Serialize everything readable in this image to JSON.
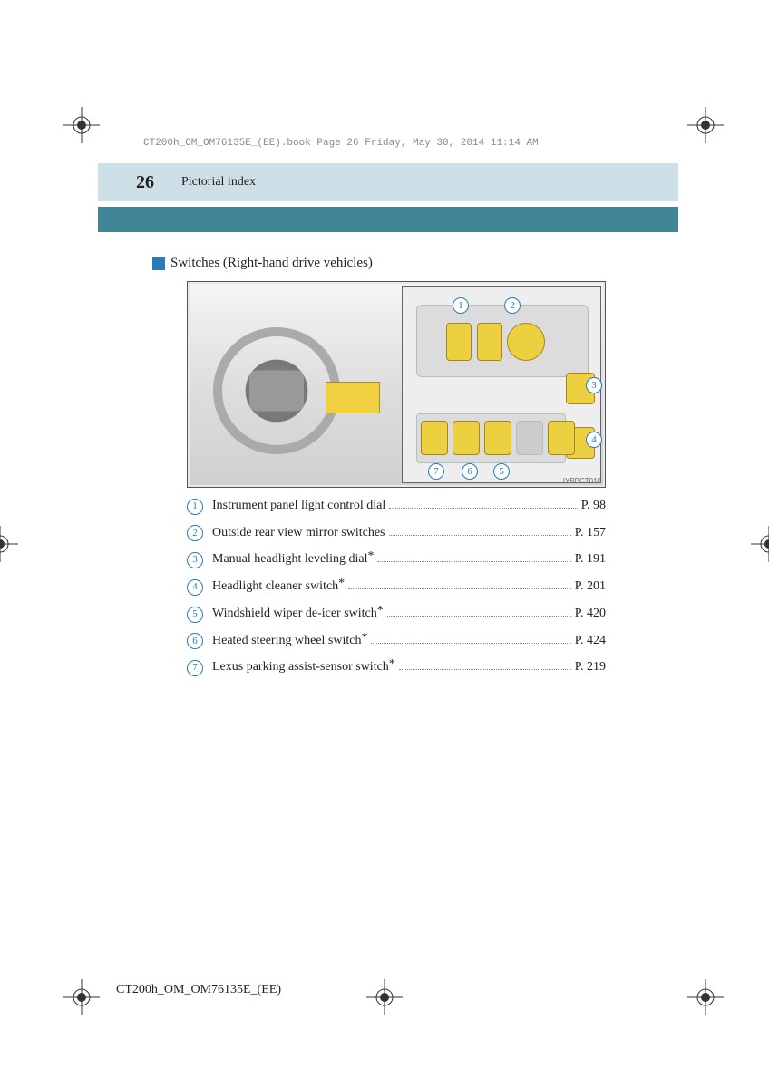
{
  "file_header": "CT200h_OM_OM76135E_(EE).book  Page 26  Friday, May 30, 2014  11:14 AM",
  "page_number": "26",
  "section_title": "Pictorial index",
  "subsection_title": "Switches (Right-hand drive vehicles)",
  "image_code": "IYBPCT010",
  "colors": {
    "header_light": "#cde0e8",
    "header_teal": "#3f8595",
    "accent_blue": "#2b7bb8",
    "highlight_yellow": "#edd040",
    "text": "#222222",
    "bg": "#ffffff"
  },
  "fontsize": {
    "page_num": 20,
    "section": 14,
    "subsection": 15,
    "row": 14,
    "callout": 11
  },
  "callouts": [
    "1",
    "2",
    "3",
    "4",
    "5",
    "6",
    "7"
  ],
  "index": [
    {
      "n": "1",
      "label": "Instrument panel light control dial",
      "star": false,
      "page": "P. 98"
    },
    {
      "n": "2",
      "label": "Outside rear view mirror switches",
      "star": false,
      "page": "P. 157"
    },
    {
      "n": "3",
      "label": "Manual headlight leveling dial",
      "star": true,
      "page": "P. 191"
    },
    {
      "n": "4",
      "label": "Headlight cleaner switch",
      "star": true,
      "page": "P. 201"
    },
    {
      "n": "5",
      "label": "Windshield wiper de-icer switch",
      "star": true,
      "page": "P. 420"
    },
    {
      "n": "6",
      "label": "Heated steering wheel switch",
      "star": true,
      "page": "P. 424"
    },
    {
      "n": "7",
      "label": "Lexus parking assist-sensor switch",
      "star": true,
      "page": "P. 219"
    }
  ],
  "footer_id": "CT200h_OM_OM76135E_(EE)"
}
